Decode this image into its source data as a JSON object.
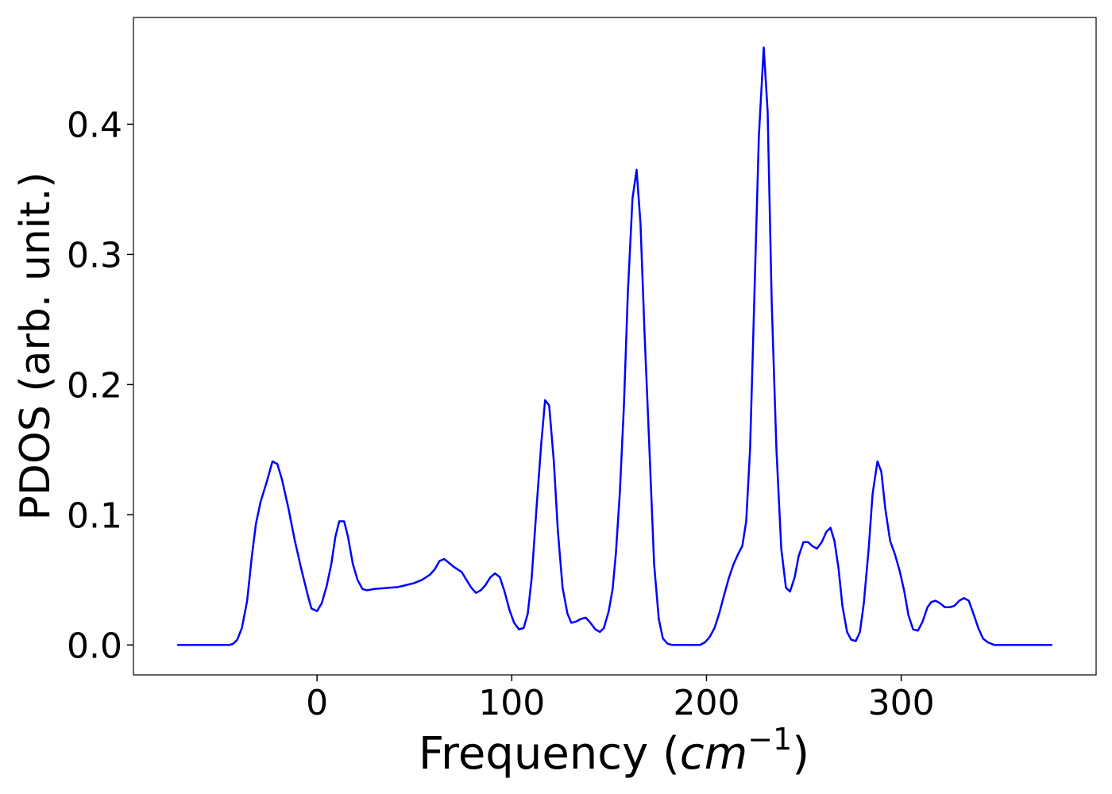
{
  "chart_data": {
    "type": "line",
    "xlabel": [
      "Frequency (",
      "cm",
      "−1",
      ")"
    ],
    "ylabel": "PDOS (arb. unit.)",
    "xlim": [
      -94.3,
      400.1
    ],
    "ylim": [
      -0.023,
      0.482
    ],
    "xticks": [
      0,
      100,
      200,
      300
    ],
    "yticks": [
      {
        "value": 0,
        "label": "0.0"
      },
      0.1,
      0.2,
      0.3,
      0.4
    ],
    "grid": false,
    "series": [
      {
        "name": "PDOS",
        "color": "#0000ff",
        "x": [
          -71.8,
          -45,
          -43,
          -41,
          -38.6,
          -35.9,
          -33.5,
          -31.4,
          -29,
          -25.7,
          -22.9,
          -20.4,
          -18,
          -14.7,
          -11.4,
          -8.2,
          -4.9,
          -2.9,
          0,
          2.4,
          4.9,
          7.3,
          9.4,
          11.4,
          13.9,
          15.9,
          18.4,
          20.8,
          23.3,
          25.7,
          29.4,
          37.6,
          41.6,
          45.7,
          49.8,
          53.9,
          58,
          60.4,
          62.9,
          65.3,
          67.8,
          70.2,
          74.3,
          76.7,
          79.2,
          81.6,
          84.1,
          86.5,
          89,
          91.4,
          93.9,
          96.3,
          98.8,
          101.2,
          103.7,
          106.1,
          108.2,
          110.2,
          112.7,
          115.1,
          117.1,
          119.2,
          121.6,
          123.7,
          126.1,
          128.6,
          130.6,
          133.1,
          135.5,
          138,
          140.4,
          142.9,
          145.3,
          147.3,
          149.8,
          151.8,
          153.5,
          155.5,
          157.6,
          159.6,
          162,
          164.1,
          166.1,
          168.2,
          170.6,
          173.1,
          175.5,
          177.6,
          180,
          182.4,
          196.7,
          199.2,
          201.6,
          204.1,
          206.5,
          209,
          211.4,
          213.9,
          216.3,
          218.4,
          220.4,
          222.4,
          224.5,
          226.9,
          229.4,
          231.4,
          233.5,
          235.9,
          238.4,
          240.8,
          242.9,
          245.3,
          247.3,
          249.8,
          252.2,
          254.3,
          256.7,
          259.2,
          261.6,
          263.7,
          265.7,
          267.8,
          269.8,
          272.2,
          274.3,
          276.7,
          278.8,
          280.8,
          283.3,
          285.3,
          287.8,
          289.8,
          291.8,
          294.3,
          296.7,
          299.2,
          301.6,
          303.7,
          306.1,
          308.6,
          311,
          313.5,
          315.5,
          317.6,
          320,
          322.4,
          324.9,
          327.3,
          329.8,
          332.2,
          334.7,
          337.1,
          339.6,
          342,
          344.5,
          347.8,
          377.6
        ],
        "values": [
          0,
          0,
          0.001,
          0.004,
          0.013,
          0.034,
          0.068,
          0.093,
          0.11,
          0.126,
          0.141,
          0.139,
          0.127,
          0.105,
          0.08,
          0.059,
          0.039,
          0.028,
          0.026,
          0.032,
          0.045,
          0.062,
          0.083,
          0.095,
          0.095,
          0.083,
          0.062,
          0.05,
          0.043,
          0.042,
          0.043,
          0.044,
          0.0445,
          0.046,
          0.0475,
          0.05,
          0.054,
          0.058,
          0.0645,
          0.066,
          0.063,
          0.06,
          0.056,
          0.05,
          0.044,
          0.04,
          0.042,
          0.046,
          0.052,
          0.055,
          0.052,
          0.041,
          0.027,
          0.017,
          0.012,
          0.013,
          0.024,
          0.051,
          0.105,
          0.154,
          0.188,
          0.184,
          0.141,
          0.087,
          0.044,
          0.024,
          0.017,
          0.018,
          0.02,
          0.021,
          0.017,
          0.012,
          0.01,
          0.013,
          0.026,
          0.043,
          0.071,
          0.117,
          0.184,
          0.27,
          0.343,
          0.365,
          0.324,
          0.239,
          0.154,
          0.062,
          0.02,
          0.005,
          0.001,
          0,
          0,
          0.002,
          0.006,
          0.013,
          0.024,
          0.038,
          0.051,
          0.062,
          0.07,
          0.076,
          0.095,
          0.151,
          0.263,
          0.391,
          0.459,
          0.41,
          0.263,
          0.151,
          0.074,
          0.044,
          0.041,
          0.052,
          0.068,
          0.079,
          0.079,
          0.076,
          0.074,
          0.079,
          0.087,
          0.09,
          0.08,
          0.059,
          0.03,
          0.01,
          0.004,
          0.003,
          0.01,
          0.032,
          0.074,
          0.116,
          0.141,
          0.133,
          0.105,
          0.08,
          0.07,
          0.057,
          0.041,
          0.023,
          0.012,
          0.011,
          0.018,
          0.029,
          0.033,
          0.034,
          0.032,
          0.029,
          0.029,
          0.03,
          0.034,
          0.036,
          0.034,
          0.024,
          0.013,
          0.005,
          0.002,
          0,
          0
        ]
      }
    ]
  }
}
